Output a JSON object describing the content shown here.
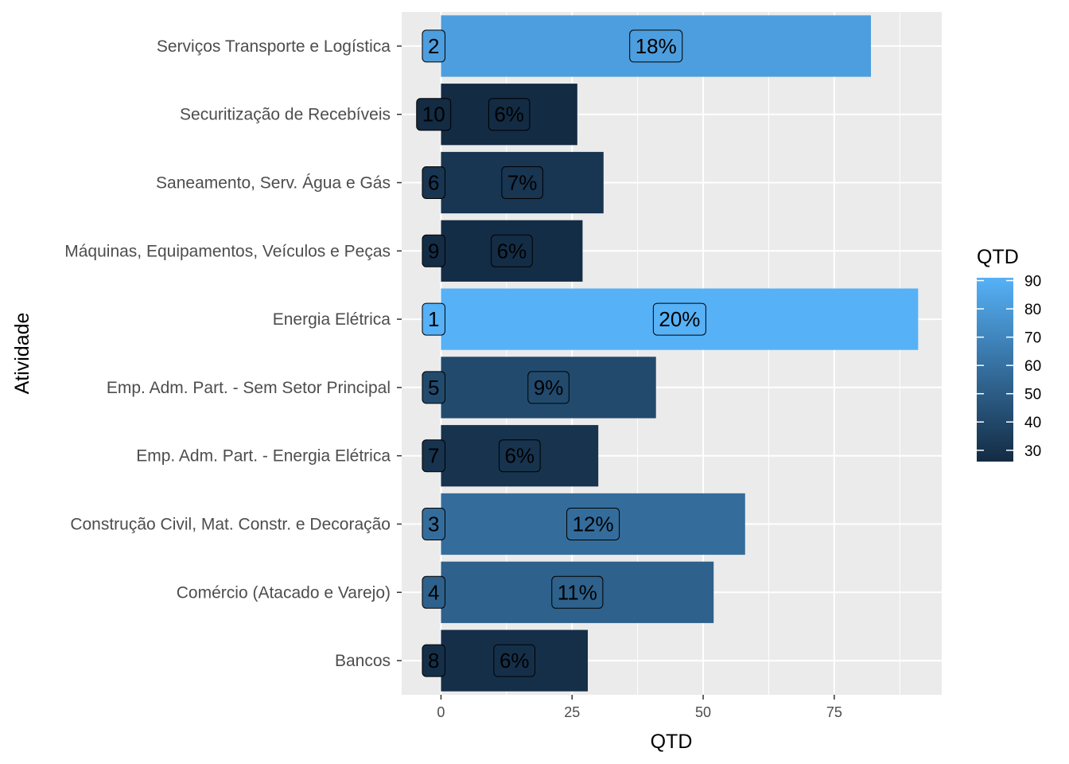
{
  "chart_data": {
    "type": "bar",
    "orientation": "horizontal",
    "xlabel": "QTD",
    "ylabel": "Atividade",
    "xlim": [
      -7.5,
      95.5
    ],
    "x_ticks": [
      0,
      25,
      50,
      75
    ],
    "grid": true,
    "categories": [
      "Serviços Transporte e Logística",
      "Securitização de Recebíveis",
      "Saneamento, Serv. Água e Gás",
      "Máquinas, Equipamentos, Veículos e Peças",
      "Energia Elétrica",
      "Emp. Adm. Part. - Sem Setor Principal",
      "Emp. Adm. Part. - Energia Elétrica",
      "Construção Civil, Mat. Constr. e Decoração",
      "Comércio (Atacado e Varejo)",
      "Bancos"
    ],
    "values": [
      82,
      26,
      31,
      27,
      91,
      41,
      30,
      58,
      52,
      28
    ],
    "percent_labels": [
      "18%",
      "6%",
      "7%",
      "6%",
      "20%",
      "9%",
      "6%",
      "12%",
      "11%",
      "6%"
    ],
    "rank_labels": [
      "2",
      "10",
      "6",
      "9",
      "1",
      "5",
      "7",
      "3",
      "4",
      "8"
    ],
    "legend": {
      "title": "QTD",
      "position": "right",
      "range": [
        26,
        91
      ],
      "ticks": [
        30,
        40,
        50,
        60,
        70,
        80,
        90
      ],
      "color_low": "#132b43",
      "color_high": "#56b1f7"
    }
  }
}
